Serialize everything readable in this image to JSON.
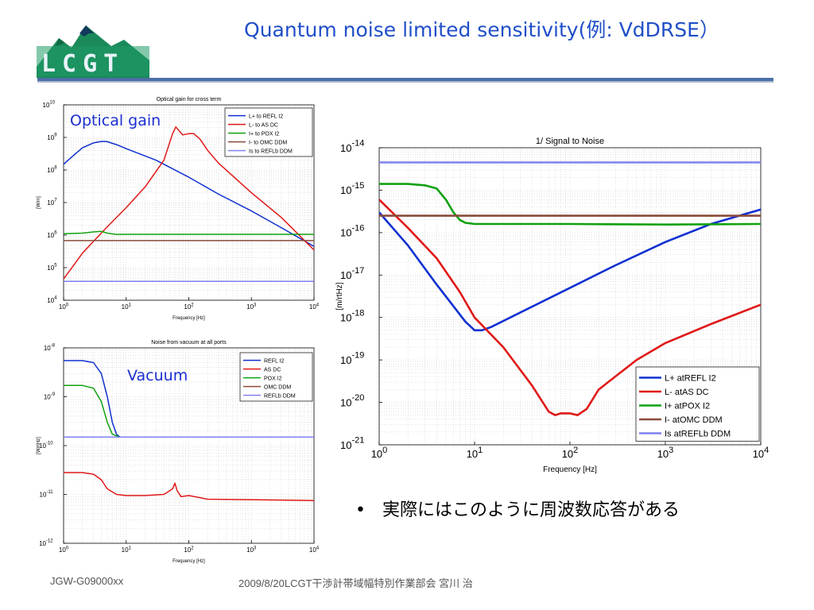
{
  "slide": {
    "title": "Quantum noise limited sensitivity(例: VdDRSE）",
    "logo_text": "LCGT",
    "footer_left": "JGW-G09000xx",
    "footer_center": "2009/8/20LCGT干渉計帯域幅特別作業部会  宮川  治",
    "bullet_text": "実際にはこのように周波数応答がある",
    "optical_gain_label": "Optical gain",
    "vacuum_label": "Vacuum",
    "colors": {
      "blue": "#1030d0",
      "red": "#e01818",
      "green": "#10a010",
      "brown": "#8b4a3a",
      "lightblue": "#8080f0",
      "accent": "#1f4ec8"
    }
  },
  "chart_data": [
    {
      "id": "optical-gain",
      "type": "line",
      "title": "Optical gain for cross term",
      "xlabel": "Frequency [Hz]",
      "ylabel": "[W/m]",
      "xscale": "log",
      "yscale": "log",
      "xlim": [
        1,
        10000
      ],
      "ylim": [
        10000,
        10000000000
      ],
      "xticks": [
        {
          "v": 1,
          "exp": "0"
        },
        {
          "v": 10,
          "exp": "1"
        },
        {
          "v": 100,
          "exp": "2"
        },
        {
          "v": 1000,
          "exp": "3"
        },
        {
          "v": 10000,
          "exp": "4"
        }
      ],
      "yticks": [
        {
          "v": 10000,
          "exp": "4"
        },
        {
          "v": 100000,
          "exp": "5"
        },
        {
          "v": 1000000,
          "exp": "6"
        },
        {
          "v": 10000000,
          "exp": "7"
        },
        {
          "v": 100000000,
          "exp": "8"
        },
        {
          "v": 1000000000,
          "exp": "9"
        },
        {
          "v": 10000000000,
          "exp": "10"
        }
      ],
      "grid": true,
      "legend_position": "top-right",
      "series": [
        {
          "name": "L+ to REFL I2",
          "color": "#1030d0",
          "x": [
            1,
            1.5,
            2,
            3,
            4,
            4.5,
            5,
            7,
            10,
            30,
            100,
            300,
            1000,
            3000,
            10000
          ],
          "y": [
            150000000,
            300000000,
            480000000,
            680000000,
            750000000,
            750000000,
            740000000,
            600000000,
            450000000,
            200000000,
            60000000,
            18000000,
            5500000,
            1700000,
            450000
          ]
        },
        {
          "name": "L- to AS DC",
          "color": "#e01818",
          "x": [
            1,
            1.5,
            2,
            3,
            5,
            10,
            20,
            40,
            55,
            62,
            70,
            80,
            100,
            120,
            150,
            200,
            300,
            1000,
            3000,
            10000
          ],
          "y": [
            45000,
            130000,
            280000,
            640000,
            1800000,
            7000000,
            30000000,
            200000000,
            1300000000,
            2100000000,
            1600000000,
            1200000000,
            1300000000,
            1300000000,
            900000000,
            400000000,
            160000000,
            20000000,
            3500000,
            350000
          ]
        },
        {
          "name": "I+ to POX I2",
          "color": "#10a010",
          "x": [
            1,
            2,
            3,
            4,
            5,
            7,
            10,
            20,
            100,
            1000,
            10000
          ],
          "y": [
            1100000,
            1150000,
            1250000,
            1300000,
            1150000,
            1050000,
            1060000,
            1060000,
            1060000,
            1060000,
            1060000
          ]
        },
        {
          "name": "I- to OMC DDM",
          "color": "#8b4a3a",
          "x": [
            1,
            10000
          ],
          "y": [
            680000,
            680000
          ]
        },
        {
          "name": "Is to REFLb DDM",
          "color": "#8080f0",
          "x": [
            1,
            10000
          ],
          "y": [
            38000,
            38000
          ]
        }
      ]
    },
    {
      "id": "vacuum-noise",
      "type": "line",
      "title": "Noise from vacuum at all ports",
      "xlabel": "Frequency [Hz]",
      "ylabel": "[W/rtHz]",
      "xscale": "log",
      "yscale": "log",
      "xlim": [
        1,
        10000
      ],
      "ylim": [
        1e-12,
        1e-08
      ],
      "xticks": [
        {
          "v": 1,
          "exp": "0"
        },
        {
          "v": 10,
          "exp": "1"
        },
        {
          "v": 100,
          "exp": "2"
        },
        {
          "v": 1000,
          "exp": "3"
        },
        {
          "v": 10000,
          "exp": "4"
        }
      ],
      "yticks": [
        {
          "v": 1e-12,
          "exp": "-12"
        },
        {
          "v": 1e-11,
          "exp": "-11"
        },
        {
          "v": 1e-10,
          "exp": "-10"
        },
        {
          "v": 1e-09,
          "exp": "-9"
        },
        {
          "v": 1e-08,
          "exp": "-8"
        }
      ],
      "grid": true,
      "legend_position": "top-right",
      "series": [
        {
          "name": "REFL I2",
          "color": "#1030d0",
          "x": [
            1,
            2,
            3,
            4,
            5,
            6,
            7,
            8,
            10,
            10000
          ],
          "y": [
            5.5e-09,
            5.5e-09,
            5e-09,
            3e-09,
            1e-09,
            3e-10,
            1.7e-10,
            1.5e-10,
            1.5e-10,
            1.5e-10
          ]
        },
        {
          "name": "AS DC",
          "color": "#e01818",
          "x": [
            1,
            2,
            3,
            4,
            5,
            7,
            10,
            20,
            40,
            55,
            60,
            65,
            75,
            100,
            200,
            1000,
            10000
          ],
          "y": [
            2.8e-11,
            2.8e-11,
            2.6e-11,
            2e-11,
            1.3e-11,
            1e-11,
            9.5e-12,
            9.5e-12,
            1e-11,
            1.3e-11,
            1.7e-11,
            1.2e-11,
            9e-12,
            9.5e-12,
            8e-12,
            7.8e-12,
            7.5e-12
          ]
        },
        {
          "name": "POX I2",
          "color": "#10a010",
          "x": [
            1,
            2,
            3,
            4,
            5,
            6,
            8,
            10000
          ],
          "y": [
            1.7e-09,
            1.7e-09,
            1.5e-09,
            8e-10,
            3e-10,
            1.7e-10,
            1.5e-10,
            1.5e-10
          ]
        },
        {
          "name": "OMC DDM",
          "color": "#8b4a3a",
          "x": [
            1,
            10000
          ],
          "y": [
            1.5e-10,
            1.5e-10
          ]
        },
        {
          "name": "REFLb DDM",
          "color": "#8080f0",
          "x": [
            1,
            10000
          ],
          "y": [
            1.5e-10,
            1.5e-10
          ]
        }
      ]
    },
    {
      "id": "signal-to-noise",
      "type": "line",
      "title": "1/ Signal to Noise",
      "xlabel": "Frequency [Hz]",
      "ylabel": "[m/rtHz]",
      "xscale": "log",
      "yscale": "log",
      "xlim": [
        1,
        10000
      ],
      "ylim": [
        1e-21,
        1e-14
      ],
      "xticks": [
        {
          "v": 1,
          "exp": "0"
        },
        {
          "v": 10,
          "exp": "1"
        },
        {
          "v": 100,
          "exp": "2"
        },
        {
          "v": 1000,
          "exp": "3"
        },
        {
          "v": 10000,
          "exp": "4"
        }
      ],
      "yticks": [
        {
          "v": 1e-21,
          "exp": "-21"
        },
        {
          "v": 1e-20,
          "exp": "-20"
        },
        {
          "v": 1e-19,
          "exp": "-19"
        },
        {
          "v": 1e-18,
          "exp": "-18"
        },
        {
          "v": 1e-17,
          "exp": "-17"
        },
        {
          "v": 1e-16,
          "exp": "-16"
        },
        {
          "v": 1e-15,
          "exp": "-15"
        },
        {
          "v": 1e-14,
          "exp": "-14"
        }
      ],
      "grid": true,
      "legend_position": "bottom-right",
      "series": [
        {
          "name": "L+ atREFL I2",
          "color": "#1030d0",
          "x": [
            1,
            2,
            4,
            8,
            10,
            12,
            15,
            30,
            100,
            300,
            1000,
            3000,
            10000
          ],
          "y": [
            3e-16,
            5e-17,
            6e-18,
            8e-19,
            5e-19,
            5e-19,
            6e-19,
            1.3e-18,
            5e-18,
            1.7e-17,
            6e-17,
            1.6e-16,
            3.5e-16
          ]
        },
        {
          "name": "L- atAS DC",
          "color": "#e01818",
          "x": [
            1,
            2,
            4,
            7,
            10,
            20,
            40,
            60,
            70,
            80,
            100,
            120,
            150,
            200,
            500,
            1000,
            3000,
            10000
          ],
          "y": [
            6e-16,
            1.3e-16,
            2.5e-17,
            4e-18,
            1e-18,
            2e-19,
            2.5e-20,
            6e-21,
            5e-21,
            5.5e-21,
            5.5e-21,
            5e-21,
            7e-21,
            2e-20,
            1e-19,
            2.5e-19,
            7e-19,
            2e-18
          ]
        },
        {
          "name": "I+ atPOX I2",
          "color": "#10a010",
          "x": [
            1,
            2,
            3,
            4,
            5,
            6,
            7,
            8,
            10,
            20,
            100,
            1000,
            10000
          ],
          "y": [
            1.4e-15,
            1.4e-15,
            1.3e-15,
            1.1e-15,
            6e-16,
            3e-16,
            2e-16,
            1.7e-16,
            1.6e-16,
            1.6e-16,
            1.6e-16,
            1.55e-16,
            1.6e-16
          ]
        },
        {
          "name": "I- atOMC DDM",
          "color": "#8b4a3a",
          "x": [
            1,
            10000
          ],
          "y": [
            2.5e-16,
            2.5e-16
          ]
        },
        {
          "name": "Is atREFLb DDM",
          "color": "#8080f0",
          "x": [
            1,
            10000
          ],
          "y": [
            4.5e-15,
            4.5e-15
          ]
        }
      ]
    }
  ]
}
